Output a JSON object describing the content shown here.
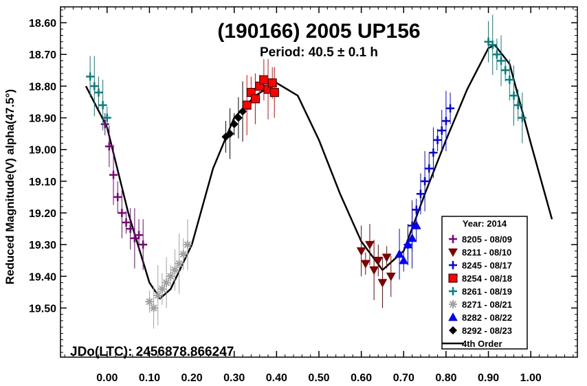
{
  "chart_data": {
    "type": "scatter",
    "title": "(190166) 2005 UP156",
    "subtitle": "Period: 40.5 ± 0.1 h",
    "ylabel": "Reduced Magnitude(V) alpha(47.5°)",
    "xlabel": "",
    "annotation": "JDo(LTC): 2456878.866247",
    "xlim": [
      -0.11,
      1.11
    ],
    "ylim": [
      18.55,
      19.655
    ],
    "y_inverted": true,
    "x_ticks": [
      0.0,
      0.1,
      0.2,
      0.3,
      0.4,
      0.5,
      0.6,
      0.7,
      0.8,
      0.9,
      1.0
    ],
    "x_tick_labels": [
      "0.00",
      "0.10",
      "0.20",
      "0.30",
      "0.40",
      "0.50",
      "0.60",
      "0.70",
      "0.80",
      "0.90",
      "1.00"
    ],
    "y_ticks": [
      18.6,
      18.7,
      18.8,
      18.9,
      19.0,
      19.1,
      19.2,
      19.3,
      19.4,
      19.5
    ],
    "y_tick_labels": [
      "18.60",
      "18.70",
      "18.80",
      "18.90",
      "19.00",
      "19.10",
      "19.20",
      "19.30",
      "19.40",
      "19.50"
    ],
    "grid": false,
    "legend_position": "bottom-right",
    "legend_title": "Year: 2014",
    "series": [
      {
        "name": "8205 - 08/09",
        "color": "#800080",
        "marker": "plus",
        "x": [
          -0.005,
          0.005,
          0.015,
          0.025,
          0.035,
          0.045,
          0.055,
          0.065,
          0.075,
          0.085
        ],
        "y": [
          18.92,
          18.99,
          19.08,
          19.15,
          19.2,
          19.23,
          19.25,
          19.28,
          19.27,
          19.3
        ]
      },
      {
        "name": "8211 - 08/10",
        "color": "#800000",
        "marker": "triangle-down",
        "x": [
          0.6,
          0.61,
          0.62,
          0.63,
          0.64,
          0.65,
          0.66,
          0.67
        ],
        "y": [
          19.32,
          19.36,
          19.3,
          19.38,
          19.35,
          19.42,
          19.34,
          19.4
        ]
      },
      {
        "name": "8245 - 08/17",
        "color": "#0000ff",
        "marker": "plus",
        "x": [
          0.71,
          0.72,
          0.73,
          0.74,
          0.75,
          0.76,
          0.77,
          0.78,
          0.79,
          0.8,
          0.81
        ],
        "y": [
          19.3,
          19.24,
          19.19,
          19.14,
          19.1,
          19.06,
          19.01,
          18.97,
          18.94,
          18.91,
          18.87
        ]
      },
      {
        "name": "8254 - 08/18",
        "color": "#ff0000",
        "marker": "square",
        "x": [
          0.33,
          0.34,
          0.35,
          0.36,
          0.37,
          0.38,
          0.39,
          0.395
        ],
        "y": [
          18.86,
          18.82,
          18.84,
          18.8,
          18.78,
          18.81,
          18.79,
          18.82
        ]
      },
      {
        "name": "8261 - 08/19",
        "color": "#008080",
        "marker": "plus",
        "x": [
          -0.04,
          -0.03,
          -0.02,
          -0.01,
          0.0,
          0.9,
          0.91,
          0.92,
          0.93,
          0.94,
          0.95,
          0.96,
          0.97,
          0.98
        ],
        "y": [
          18.77,
          18.8,
          18.82,
          18.86,
          18.9,
          18.66,
          18.67,
          18.7,
          18.72,
          18.75,
          18.78,
          18.83,
          18.86,
          18.9
        ]
      },
      {
        "name": "8271 - 08/21",
        "color": "#a0a0a0",
        "marker": "asterisk",
        "x": [
          0.1,
          0.11,
          0.12,
          0.13,
          0.14,
          0.15,
          0.16,
          0.17,
          0.18,
          0.19
        ],
        "y": [
          19.48,
          19.5,
          19.46,
          19.44,
          19.42,
          19.4,
          19.38,
          19.36,
          19.33,
          19.3
        ]
      },
      {
        "name": "8282 - 08/22",
        "color": "#0000ff",
        "marker": "triangle-up",
        "x": [
          0.69,
          0.7,
          0.71,
          0.72,
          0.73
        ],
        "y": [
          19.33,
          19.35,
          19.3,
          19.28,
          19.24
        ]
      },
      {
        "name": "8292 - 08/23",
        "color": "#000000",
        "marker": "diamond",
        "x": [
          0.28,
          0.29,
          0.3,
          0.31,
          0.32
        ],
        "y": [
          18.96,
          18.95,
          18.92,
          18.9,
          18.88
        ]
      },
      {
        "name": "4th Order",
        "color": "#000000",
        "marker": "line",
        "x": [
          -0.05,
          0.0,
          0.05,
          0.1,
          0.125,
          0.15,
          0.2,
          0.25,
          0.3,
          0.35,
          0.38,
          0.4,
          0.45,
          0.5,
          0.55,
          0.6,
          0.65,
          0.7,
          0.75,
          0.8,
          0.85,
          0.9,
          0.915,
          0.95,
          1.0,
          1.05
        ],
        "y": [
          18.8,
          18.93,
          19.2,
          19.42,
          19.47,
          19.44,
          19.3,
          19.06,
          18.9,
          18.83,
          18.805,
          18.79,
          18.83,
          18.97,
          19.14,
          19.29,
          19.38,
          19.32,
          19.14,
          18.97,
          18.81,
          18.68,
          18.67,
          18.73,
          18.98,
          19.22
        ]
      }
    ]
  }
}
